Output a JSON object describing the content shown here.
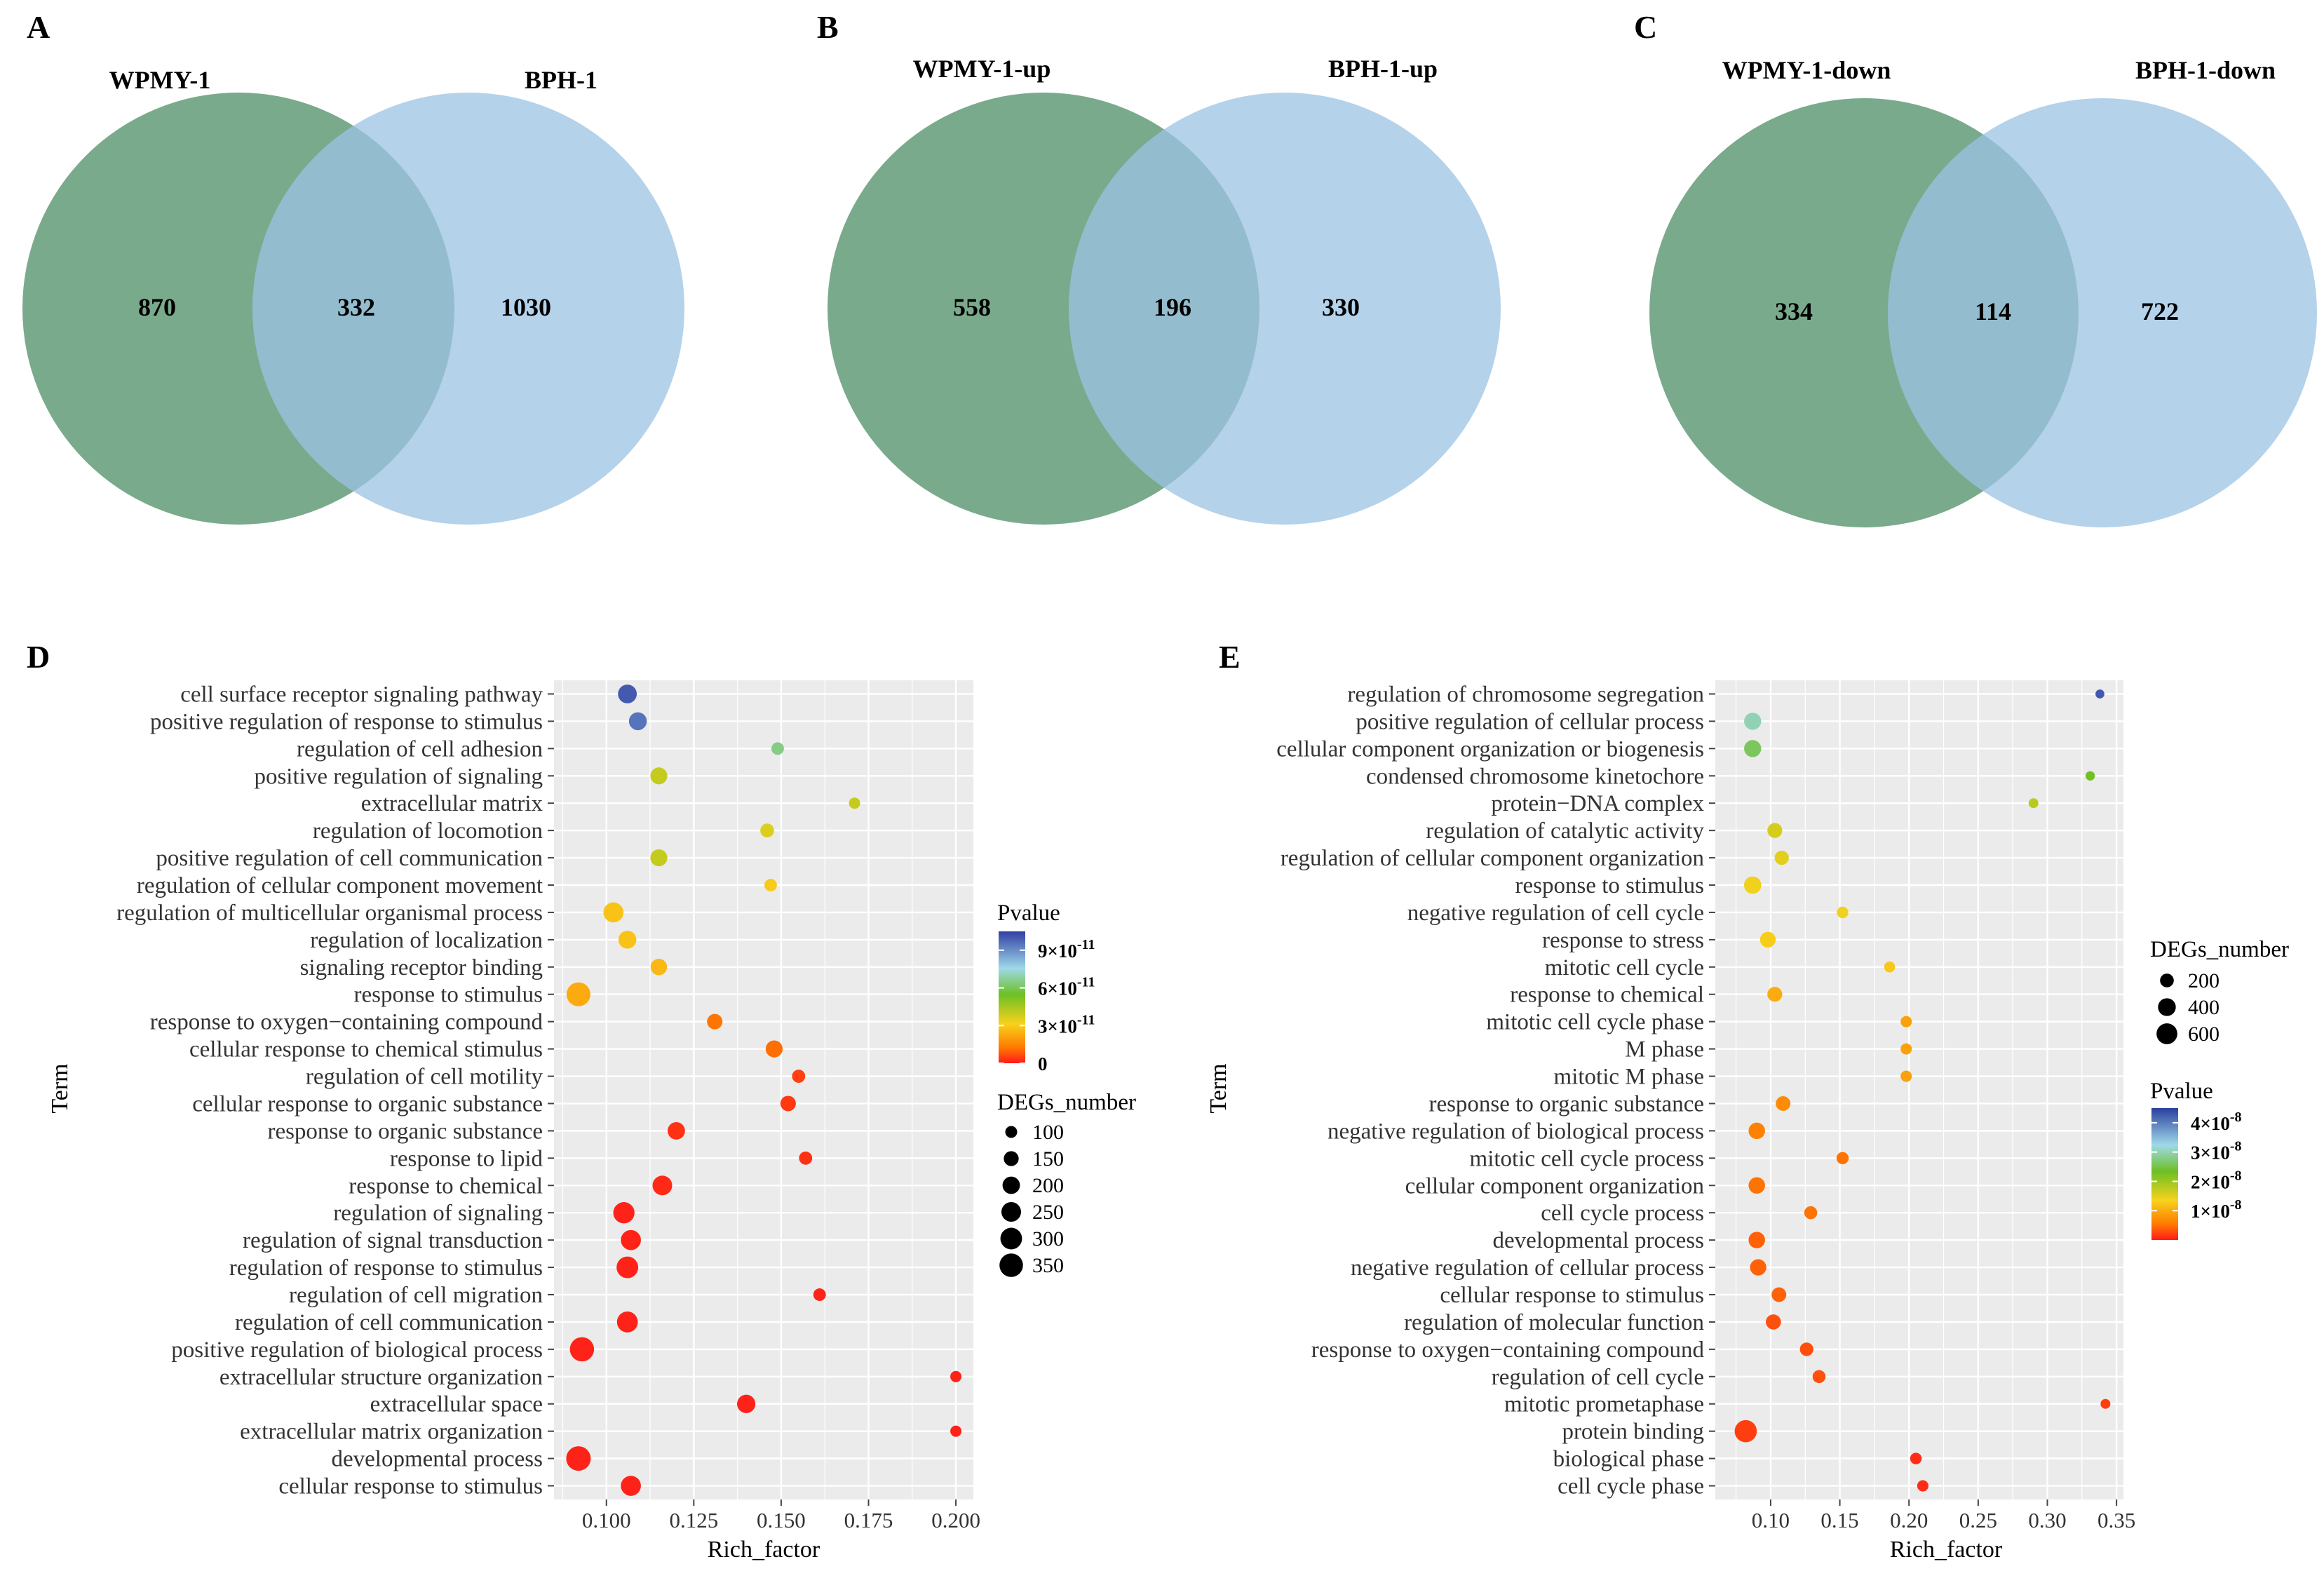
{
  "colors": {
    "green": "#7aaa8c",
    "blue": "#9cc3e4",
    "panel_bg": "#ebebeb",
    "grid": "#ffffff"
  },
  "venns": [
    {
      "letter": "A",
      "left_label": "WPMY-1",
      "right_label": "BPH-1",
      "left_only": "870",
      "both": "332",
      "right_only": "1030"
    },
    {
      "letter": "B",
      "left_label": "WPMY-1-up",
      "right_label": "BPH-1-up",
      "left_only": "558",
      "both": "196",
      "right_only": "330"
    },
    {
      "letter": "C",
      "left_label": "WPMY-1-down",
      "right_label": "BPH-1-down",
      "left_only": "334",
      "both": "114",
      "right_only": "722"
    }
  ],
  "chart_data": [
    {
      "letter": "D",
      "type": "scatter",
      "xlabel": "Rich_factor",
      "ylabel": "Term",
      "xlim": [
        0.085,
        0.205
      ],
      "xticks": [
        0.1,
        0.125,
        0.15,
        0.175,
        0.2
      ],
      "xtick_labels": [
        "0.100",
        "0.125",
        "0.150",
        "0.175",
        "0.200"
      ],
      "color_legend": {
        "title": "Pvalue",
        "max": 1.05e-10,
        "ticks": [
          9e-11,
          6e-11,
          3e-11,
          0
        ],
        "tick_labels": [
          {
            "mant": "9×10",
            "exp": "-11"
          },
          {
            "mant": "6×10",
            "exp": "-11"
          },
          {
            "mant": "3×10",
            "exp": "-11"
          },
          {
            "mant": "0",
            "exp": ""
          }
        ]
      },
      "size_legend": {
        "title": "DEGs_number",
        "values": [
          100,
          150,
          200,
          250,
          300,
          350
        ]
      },
      "size_range": [
        80,
        380
      ],
      "points": [
        {
          "term": "cell surface receptor signaling pathway",
          "rich": 0.106,
          "degs": 230,
          "p": 1e-10
        },
        {
          "term": "positive regulation of response to stimulus",
          "rich": 0.109,
          "degs": 210,
          "p": 9.5e-11
        },
        {
          "term": "regulation of cell adhesion",
          "rich": 0.149,
          "degs": 110,
          "p": 6.5e-11
        },
        {
          "term": "positive regulation of signaling",
          "rich": 0.115,
          "degs": 190,
          "p": 4e-11
        },
        {
          "term": "extracellular matrix",
          "rich": 0.171,
          "degs": 90,
          "p": 4e-11
        },
        {
          "term": "regulation of locomotion",
          "rich": 0.146,
          "degs": 130,
          "p": 3.6e-11
        },
        {
          "term": "positive regulation of cell communication",
          "rich": 0.115,
          "degs": 190,
          "p": 4e-11
        },
        {
          "term": "regulation of cellular component movement",
          "rich": 0.147,
          "degs": 110,
          "p": 3e-11
        },
        {
          "term": "regulation of multicellular organismal process",
          "rich": 0.102,
          "degs": 260,
          "p": 2.8e-11
        },
        {
          "term": "regulation of localization",
          "rich": 0.106,
          "degs": 210,
          "p": 2.8e-11
        },
        {
          "term": "signaling receptor binding",
          "rich": 0.115,
          "degs": 180,
          "p": 2.6e-11
        },
        {
          "term": "response to stimulus",
          "rich": 0.092,
          "degs": 360,
          "p": 2.3e-11
        },
        {
          "term": "response to oxygen−containing compound",
          "rich": 0.131,
          "degs": 160,
          "p": 1.2e-11
        },
        {
          "term": "cellular response to chemical stimulus",
          "rich": 0.148,
          "degs": 190,
          "p": 1.1e-11
        },
        {
          "term": "regulation of cell motility",
          "rich": 0.155,
          "degs": 120,
          "p": 5e-12
        },
        {
          "term": "cellular response to organic substance",
          "rich": 0.152,
          "degs": 160,
          "p": 4e-12
        },
        {
          "term": "response to organic substance",
          "rich": 0.12,
          "degs": 200,
          "p": 3e-12
        },
        {
          "term": "response to lipid",
          "rich": 0.157,
          "degs": 120,
          "p": 3e-12
        },
        {
          "term": "response to chemical",
          "rich": 0.116,
          "degs": 250,
          "p": 2e-12
        },
        {
          "term": "regulation of signaling",
          "rich": 0.105,
          "degs": 290,
          "p": 1e-12
        },
        {
          "term": "regulation of signal transduction",
          "rich": 0.107,
          "degs": 260,
          "p": 1e-12
        },
        {
          "term": "regulation of response to stimulus",
          "rich": 0.106,
          "degs": 300,
          "p": 1e-12
        },
        {
          "term": "regulation of cell migration",
          "rich": 0.161,
          "degs": 110,
          "p": 1e-12
        },
        {
          "term": "regulation of cell communication",
          "rich": 0.106,
          "degs": 280,
          "p": 1e-12
        },
        {
          "term": "positive regulation of biological process",
          "rich": 0.093,
          "degs": 370,
          "p": 1e-12
        },
        {
          "term": "extracellular structure organization",
          "rich": 0.2,
          "degs": 90,
          "p": 1e-12
        },
        {
          "term": "extracellular space",
          "rich": 0.14,
          "degs": 220,
          "p": 1e-12
        },
        {
          "term": "extracellular matrix organization",
          "rich": 0.2,
          "degs": 90,
          "p": 1e-12
        },
        {
          "term": "developmental process",
          "rich": 0.092,
          "degs": 380,
          "p": 1e-12
        },
        {
          "term": "cellular response to stimulus",
          "rich": 0.107,
          "degs": 260,
          "p": 1e-12
        }
      ]
    },
    {
      "letter": "E",
      "type": "scatter",
      "xlabel": "Rich_factor",
      "ylabel": "Term",
      "xlim": [
        0.06,
        0.355
      ],
      "xticks": [
        0.1,
        0.15,
        0.2,
        0.25,
        0.3,
        0.35
      ],
      "xtick_labels": [
        "0.10",
        "0.15",
        "0.20",
        "0.25",
        "0.30",
        "0.35"
      ],
      "color_legend": {
        "title": "Pvalue",
        "max": 4.5e-08,
        "ticks": [
          4e-08,
          3e-08,
          2e-08,
          1e-08
        ],
        "tick_labels": [
          {
            "mant": "4×10",
            "exp": "-8"
          },
          {
            "mant": "3×10",
            "exp": "-8"
          },
          {
            "mant": "2×10",
            "exp": "-8"
          },
          {
            "mant": "1×10",
            "exp": "-8"
          }
        ]
      },
      "size_legend": {
        "title": "DEGs_number",
        "values": [
          200,
          400,
          600
        ]
      },
      "size_range": [
        40,
        720
      ],
      "points": [
        {
          "term": "regulation of chromosome segregation",
          "rich": 0.338,
          "degs": 50,
          "p": 4.3e-08
        },
        {
          "term": "positive regulation of cellular process",
          "rich": 0.087,
          "degs": 360,
          "p": 3e-08
        },
        {
          "term": "cellular component organization or biogenesis",
          "rich": 0.087,
          "degs": 360,
          "p": 2.6e-08
        },
        {
          "term": "condensed chromosome kinetochore",
          "rich": 0.331,
          "degs": 60,
          "p": 2.3e-08
        },
        {
          "term": "protein−DNA complex",
          "rich": 0.29,
          "degs": 70,
          "p": 1.8e-08
        },
        {
          "term": "regulation of catalytic activity",
          "rich": 0.103,
          "degs": 250,
          "p": 1.6e-08
        },
        {
          "term": "regulation of cellular component organization",
          "rich": 0.108,
          "degs": 220,
          "p": 1.5e-08
        },
        {
          "term": "response to stimulus",
          "rich": 0.087,
          "degs": 370,
          "p": 1.4e-08
        },
        {
          "term": "negative regulation of cell cycle",
          "rich": 0.152,
          "degs": 120,
          "p": 1.4e-08
        },
        {
          "term": "response to stress",
          "rich": 0.098,
          "degs": 290,
          "p": 1.3e-08
        },
        {
          "term": "mitotic cell cycle",
          "rich": 0.186,
          "degs": 100,
          "p": 1.25e-08
        },
        {
          "term": "response to chemical",
          "rich": 0.103,
          "degs": 250,
          "p": 1e-08
        },
        {
          "term": "mitotic cell cycle phase",
          "rich": 0.198,
          "degs": 110,
          "p": 9e-09
        },
        {
          "term": "M phase",
          "rich": 0.198,
          "degs": 110,
          "p": 9e-09
        },
        {
          "term": "mitotic M phase",
          "rich": 0.198,
          "degs": 110,
          "p": 9e-09
        },
        {
          "term": "response to organic substance",
          "rich": 0.109,
          "degs": 240,
          "p": 7e-09
        },
        {
          "term": "negative regulation of biological process",
          "rich": 0.09,
          "degs": 330,
          "p": 6e-09
        },
        {
          "term": "mitotic cell cycle process",
          "rich": 0.152,
          "degs": 140,
          "p": 5e-09
        },
        {
          "term": "cellular component organization",
          "rich": 0.09,
          "degs": 330,
          "p": 5e-09
        },
        {
          "term": "cell cycle process",
          "rich": 0.129,
          "degs": 170,
          "p": 5e-09
        },
        {
          "term": "developmental process",
          "rich": 0.09,
          "degs": 330,
          "p": 4e-09
        },
        {
          "term": "negative regulation of cellular process",
          "rich": 0.091,
          "degs": 320,
          "p": 4e-09
        },
        {
          "term": "cellular response to stimulus",
          "rich": 0.106,
          "degs": 240,
          "p": 4e-09
        },
        {
          "term": "regulation of molecular function",
          "rich": 0.102,
          "degs": 260,
          "p": 3e-09
        },
        {
          "term": "response to oxygen−containing compound",
          "rich": 0.126,
          "degs": 190,
          "p": 3e-09
        },
        {
          "term": "regulation of cell cycle",
          "rich": 0.135,
          "degs": 170,
          "p": 3e-09
        },
        {
          "term": "mitotic prometaphase",
          "rich": 0.342,
          "degs": 70,
          "p": 2e-09
        },
        {
          "term": "protein binding",
          "rich": 0.082,
          "degs": 700,
          "p": 2e-09
        },
        {
          "term": "biological phase",
          "rich": 0.205,
          "degs": 120,
          "p": 1e-09
        },
        {
          "term": "cell cycle phase",
          "rich": 0.21,
          "degs": 110,
          "p": 1e-09
        }
      ]
    }
  ]
}
